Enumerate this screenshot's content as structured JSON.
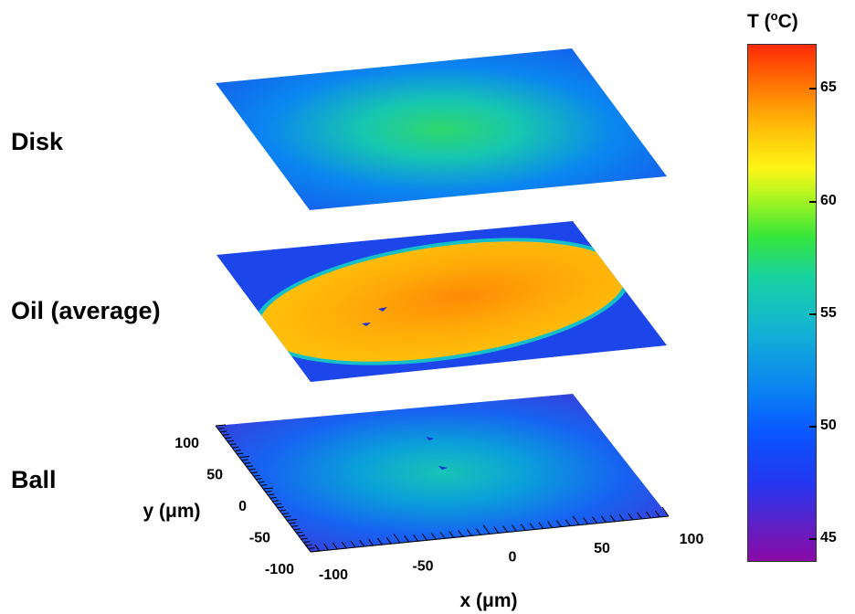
{
  "labels": {
    "disk": "Disk",
    "oil": "Oil (average)",
    "ball": "Ball"
  },
  "colorbar": {
    "title_main": "T (",
    "title_sup": "o",
    "title_end": "C)"
  },
  "chart_data": {
    "type": "heatmap",
    "layers": [
      {
        "name": "Disk",
        "peak_T": 56,
        "edge_T": 48
      },
      {
        "name": "Oil (average)",
        "contact_T": 62,
        "outside_T": 48
      },
      {
        "name": "Ball",
        "peak_T": 52,
        "edge_T": 45
      }
    ],
    "xlabel": "x (μm)",
    "ylabel": "y (μm)",
    "x_ticks": [
      "-100",
      "-50",
      "0",
      "50",
      "100"
    ],
    "y_ticks": [
      "100",
      "50",
      "0",
      "-50",
      "-100"
    ],
    "colorbar": {
      "label": "T (oC)",
      "range": [
        44,
        67
      ],
      "ticks": [
        "45",
        "50",
        "55",
        "60",
        "65"
      ],
      "colors": [
        "#8b0aa5",
        "#2436f0",
        "#13b4d3",
        "#37e63a",
        "#fdf617",
        "#ff9c06",
        "#ff2a0a"
      ]
    }
  }
}
